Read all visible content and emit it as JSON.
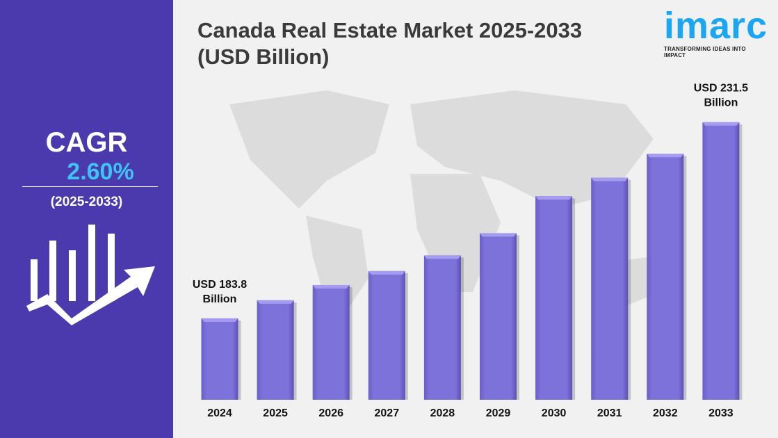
{
  "title_line1": "Canada Real Estate Market 2025-2033",
  "title_line2": "(USD Billion)",
  "logo": {
    "word": "imarc",
    "tagline": "TRANSFORMING IDEAS INTO IMPACT"
  },
  "sidebar": {
    "cagr_label": "CAGR",
    "cagr_value": "2.60%",
    "period": "(2025-2033)",
    "icon": "bar-growth-arrow-icon"
  },
  "colors": {
    "bar": "#7b6fd8",
    "panel": "#4a3aae",
    "accent": "#3fc3f5"
  },
  "chart_data": {
    "type": "bar",
    "title": "Canada Real Estate Market 2025-2033 (USD Billion)",
    "categories": [
      "2024",
      "2025",
      "2026",
      "2027",
      "2028",
      "2029",
      "2030",
      "2031",
      "2032",
      "2033"
    ],
    "values": [
      183.8,
      188.2,
      191.9,
      195.3,
      199.1,
      204.5,
      213.5,
      218.0,
      223.8,
      231.5
    ],
    "data_labels": [
      {
        "category": "2024",
        "line1": "USD 183.8",
        "line2": "Billion"
      },
      {
        "category": "2033",
        "line1": "USD 231.5",
        "line2": "Billion"
      }
    ],
    "ylim": [
      164,
      235
    ],
    "grid": false,
    "legend": "none"
  }
}
